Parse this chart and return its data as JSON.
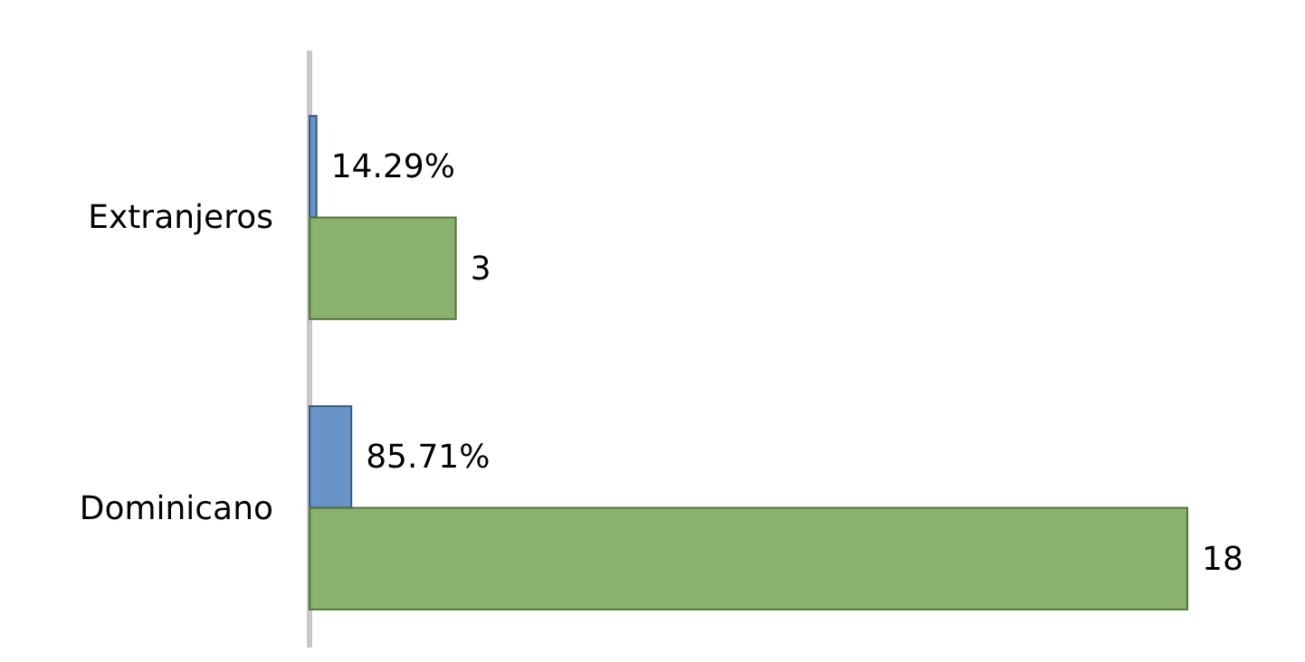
{
  "chart_data": {
    "type": "bar",
    "orientation": "horizontal",
    "categories": [
      "Extranjeros",
      "Dominicano"
    ],
    "series": [
      {
        "color": "#4f81bd",
        "values": [
          0.1429,
          0.8571
        ],
        "value_labels": [
          "14.29%",
          "85.71%"
        ]
      },
      {
        "color": "#77a553",
        "values": [
          3,
          18
        ],
        "value_labels": [
          "3",
          "18"
        ]
      }
    ]
  }
}
